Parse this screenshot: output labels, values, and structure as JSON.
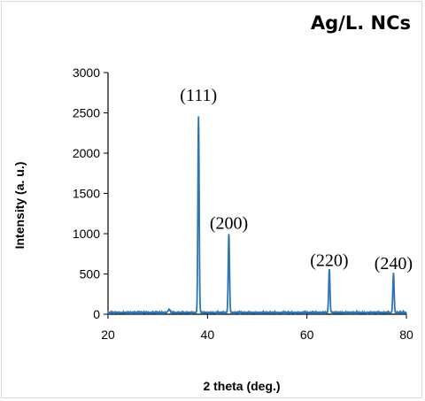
{
  "chart_data": {
    "type": "line",
    "title": "Ag/L. NCs",
    "xlabel": "2 theta (deg.)",
    "ylabel": "Intensity (a. u.)",
    "xlim": [
      20,
      80
    ],
    "ylim": [
      0,
      3000
    ],
    "xticks": [
      20,
      40,
      60,
      80
    ],
    "yticks": [
      0,
      500,
      1000,
      1500,
      2000,
      2500,
      3000
    ],
    "grid": false,
    "line_color": "#2e75b6",
    "baseline": 15,
    "peaks": [
      {
        "x": 38.2,
        "y": 2440,
        "label": "(111)",
        "label_x": 38.2,
        "label_y": 2650
      },
      {
        "x": 44.3,
        "y": 980,
        "label": "(200)",
        "label_x": 44.3,
        "label_y": 1060
      },
      {
        "x": 64.5,
        "y": 540,
        "label": "(220)",
        "label_x": 64.5,
        "label_y": 600
      },
      {
        "x": 77.4,
        "y": 490,
        "label": "(240)",
        "label_x": 77.4,
        "label_y": 560
      }
    ],
    "minor_bumps": [
      {
        "x": 32.3,
        "y": 40
      }
    ]
  }
}
